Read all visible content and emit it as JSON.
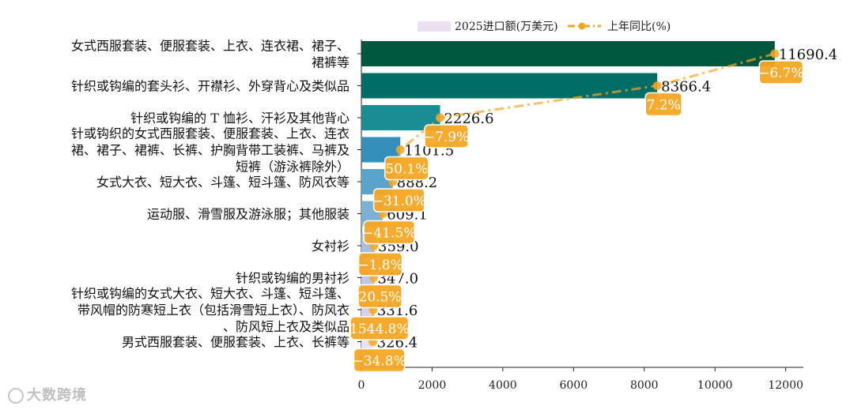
{
  "chart_data": {
    "type": "bar",
    "orientation": "horizontal",
    "categories": [
      "女式西服套装、便服套装、上衣、连衣裙、裙子、裙裤等",
      "针织或钩编的套头衫、开襟衫、外穿背心及类似品",
      "针织或钩编的T恤衫、汗衫及其他背心",
      "针或钩织的女式西服套装、便服套装、上衣、连衣裙、裙子、裙裤、长裤、护胸背带工装裤、马裤及短裤（游泳裤除外）",
      "女式大衣、短大衣、斗篷、短斗篷、防风衣等",
      "运动服、滑雪服及游泳服；其他服装",
      "女衬衫",
      "针织或钩编的男衬衫",
      "针织或钩编的女式大衣、短大衣、斗篷、短斗篷、带风帽的防寒短上衣（包括滑雪短上衣）、防风衣、防风短上衣及类似品",
      "男式西服套装、便服套装、上衣、长裤等"
    ],
    "category_lines": [
      [
        "女式西服套装、便服套装、上衣、连衣裙、裙子、",
        "裙裤等"
      ],
      [
        "针织或钩编的套头衫、开襟衫、外穿背心及类似品"
      ],
      [
        "针织或钩编的 T 恤衫、汗衫及其他背心"
      ],
      [
        "针或钩织的女式西服套装、便服套装、上衣、连衣",
        "裙、裙子、裙裤、长裤、护胸背带工装裤、马裤及",
        "短裤（游泳裤除外）"
      ],
      [
        "女式大衣、短大衣、斗篷、短斗篷、防风衣等"
      ],
      [
        "运动服、滑雪服及游泳服；其他服装"
      ],
      [
        "女衬衫"
      ],
      [
        "针织或钩编的男衬衫"
      ],
      [
        "针织或钩编的女式大衣、短大衣、斗篷、短斗篷、",
        "带风帽的防寒短上衣（包括滑雪短上衣）、防风衣",
        "、防风短上衣及类似品"
      ],
      [
        "男式西服套装、便服套装、上衣、长裤等"
      ]
    ],
    "series": [
      {
        "name": "2025进口额(万美元)",
        "values": [
          11690.4,
          8366.4,
          2226.6,
          1101.5,
          888.2,
          609.1,
          359.0,
          347.0,
          331.6,
          326.4
        ],
        "labels": [
          "11690.4",
          "8366.4",
          "2226.6",
          "1101.5",
          "888.2",
          "609.1",
          "359.0",
          "347.0",
          "331.6",
          "326.4"
        ],
        "colors": [
          "#00573f",
          "#006d67",
          "#1a8c94",
          "#3390bb",
          "#5aa3cc",
          "#7ab2d6",
          "#a9bfe0",
          "#c1c8e6",
          "#d6d2eb",
          "#ebe0f0"
        ]
      },
      {
        "name": "上年同比(%)",
        "values": [
          -6.7,
          7.2,
          -7.9,
          50.1,
          -31.0,
          -41.5,
          -1.8,
          20.5,
          1544.8,
          -34.8
        ],
        "labels": [
          "−6.7%",
          "7.2%",
          "−7.9%",
          "50.1%",
          "−31.0%",
          "−41.5%",
          "−1.8%",
          "20.5%",
          "1544.8%",
          "−34.8%"
        ],
        "color": "#f5a623"
      }
    ],
    "xlim": [
      0,
      12500
    ],
    "xticks": [
      "0",
      "2000",
      "4000",
      "6000",
      "8000",
      "10000",
      "12000"
    ],
    "legend_position": "top",
    "grid": false
  },
  "watermark": "大数跨境"
}
